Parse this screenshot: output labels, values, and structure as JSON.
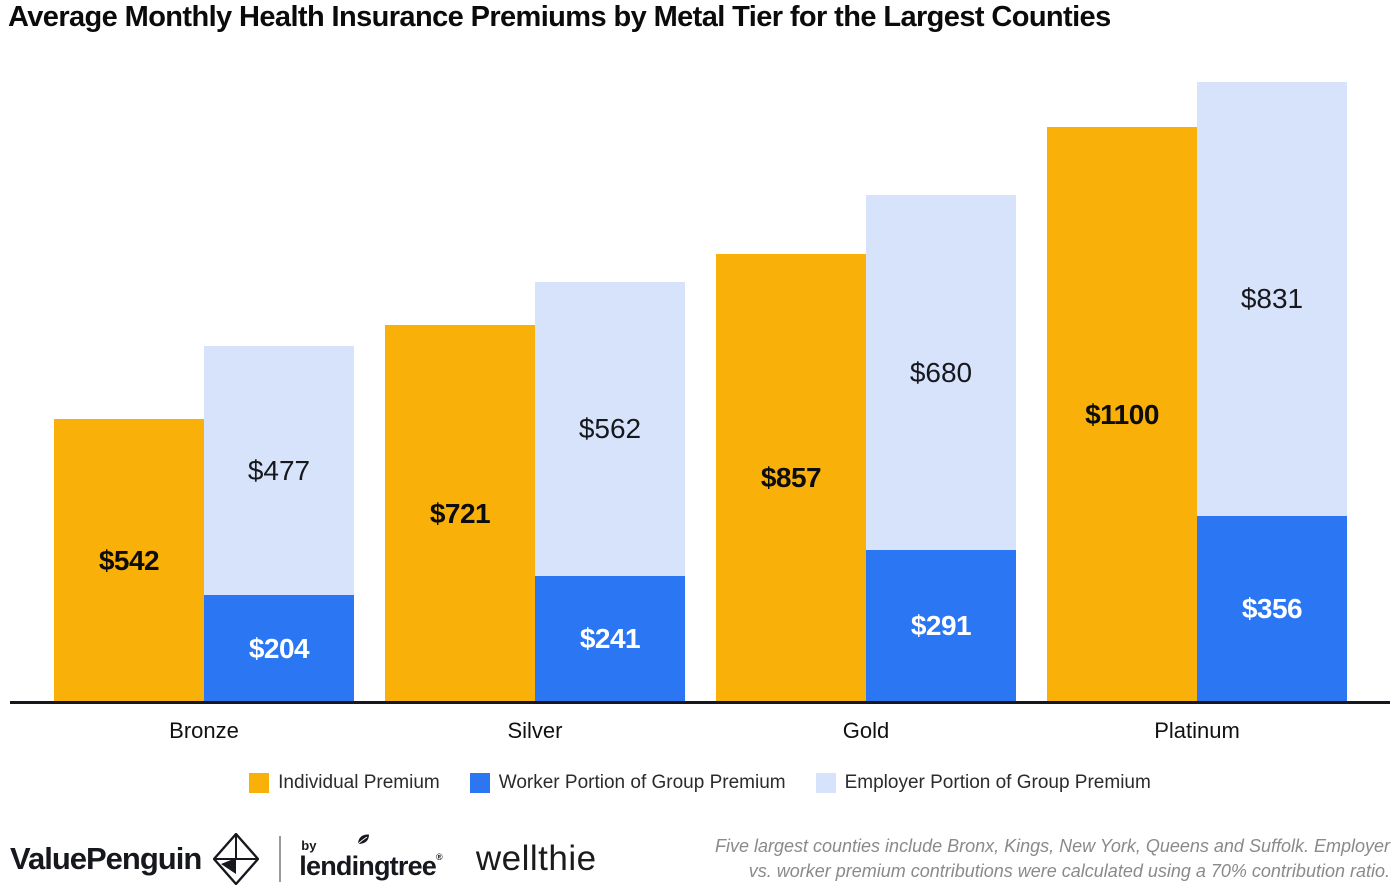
{
  "title": "Average Monthly Health Insurance Premiums by Metal Tier for the Largest Counties",
  "chart_data": {
    "type": "bar",
    "subtype": "grouped-with-stack",
    "categories": [
      "Bronze",
      "Silver",
      "Gold",
      "Platinum"
    ],
    "series": [
      {
        "name": "Individual Premium",
        "color": "#F9B10A",
        "bar": "individual",
        "values": [
          542,
          721,
          857,
          1100
        ],
        "labels": [
          "$542",
          "$721",
          "$857",
          "$1100"
        ]
      },
      {
        "name": "Worker Portion of Group Premium",
        "color": "#2B77F3",
        "bar": "group-stack-bottom",
        "values": [
          204,
          241,
          291,
          356
        ],
        "labels": [
          "$204",
          "$241",
          "$291",
          "$356"
        ]
      },
      {
        "name": "Employer Portion of Group Premium",
        "color": "#D7E3FB",
        "bar": "group-stack-top",
        "values": [
          477,
          562,
          680,
          831
        ],
        "labels": [
          "$477",
          "$562",
          "$680",
          "$831"
        ]
      }
    ],
    "ylim": [
      0,
      1230
    ],
    "grid": false,
    "y_axis_shown": false,
    "legend_position": "bottom",
    "axis_color": "#16181d"
  },
  "footer": {
    "valuepenguin": "ValuePenguin",
    "penguin_icon": "origami-penguin-diamond",
    "by": "by",
    "lendingtree": "lendingtree",
    "reg_mark": "®",
    "wellthie": "wellthie",
    "footnote_lines": [
      "Five largest counties include Bronx, Kings, New York, Queens and Suffolk. Employer",
      "vs. worker premium contributions were calculated  using a 70% contribution ratio."
    ]
  }
}
